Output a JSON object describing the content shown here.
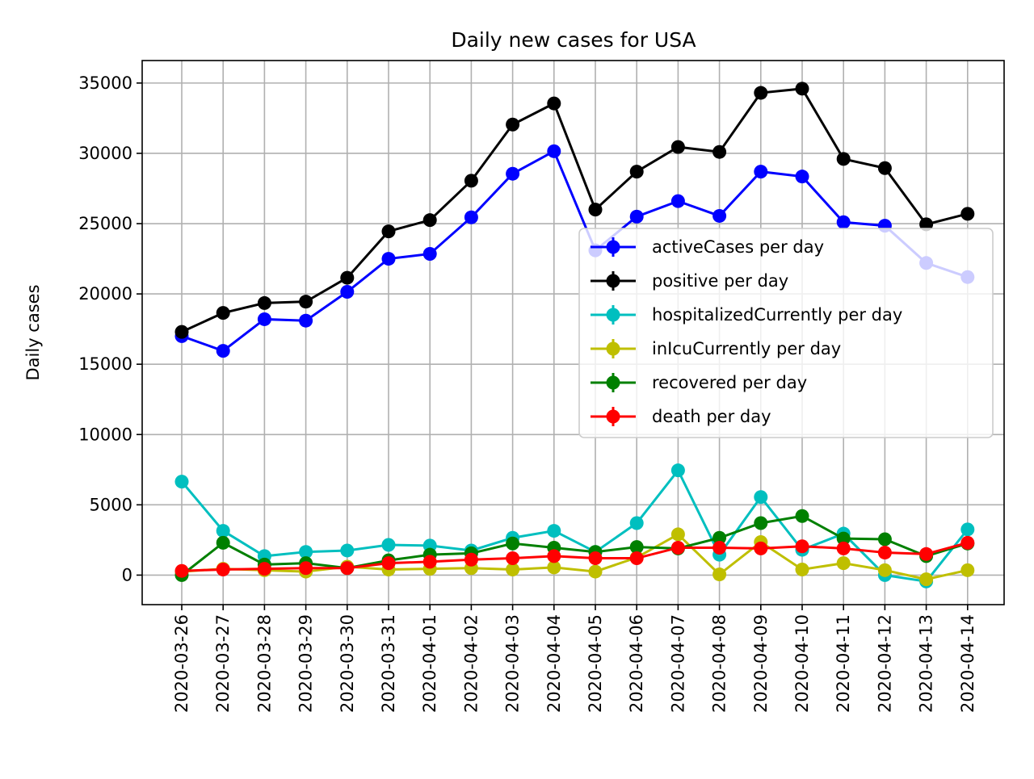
{
  "chart_data": {
    "type": "line",
    "title": "Daily new cases for USA",
    "xlabel": "",
    "ylabel": "Daily cases",
    "x": [
      "2020-03-26",
      "2020-03-27",
      "2020-03-28",
      "2020-03-29",
      "2020-03-30",
      "2020-03-31",
      "2020-04-01",
      "2020-04-02",
      "2020-04-03",
      "2020-04-04",
      "2020-04-05",
      "2020-04-06",
      "2020-04-07",
      "2020-04-08",
      "2020-04-09",
      "2020-04-10",
      "2020-04-11",
      "2020-04-12",
      "2020-04-13",
      "2020-04-14"
    ],
    "ylim": [
      -2100,
      36600
    ],
    "yticks": [
      0,
      5000,
      10000,
      15000,
      20000,
      25000,
      30000,
      35000
    ],
    "grid": true,
    "legend_position": "right",
    "series": [
      {
        "name": "activeCases per day",
        "color": "#0000ff",
        "values": [
          17000,
          15950,
          18200,
          18100,
          20150,
          22500,
          22850,
          25450,
          28550,
          30150,
          23100,
          25500,
          26600,
          25550,
          28700,
          28350,
          25100,
          24850,
          22200,
          21200
        ]
      },
      {
        "name": "positive per day",
        "color": "#000000",
        "values": [
          17300,
          18650,
          19350,
          19450,
          21150,
          24450,
          25250,
          28050,
          32050,
          33550,
          26000,
          28700,
          30450,
          30100,
          34300,
          34600,
          29600,
          28950,
          24950,
          25700
        ]
      },
      {
        "name": "hospitalizedCurrently per day",
        "color": "#00bfbf",
        "values": [
          6650,
          3150,
          1350,
          1650,
          1750,
          2150,
          2100,
          1750,
          2650,
          3150,
          1650,
          3700,
          7450,
          1450,
          5550,
          1800,
          2950,
          0,
          -450,
          3250
        ]
      },
      {
        "name": "inIcuCurrently per day",
        "color": "#bfbf00",
        "values": [
          250,
          450,
          350,
          250,
          600,
          400,
          450,
          500,
          400,
          550,
          250,
          1250,
          2900,
          50,
          2350,
          400,
          850,
          350,
          -300,
          350
        ]
      },
      {
        "name": "recovered per day",
        "color": "#008000",
        "values": [
          0,
          2300,
          750,
          850,
          500,
          1050,
          1450,
          1550,
          2250,
          1950,
          1650,
          2000,
          1900,
          2650,
          3700,
          4200,
          2600,
          2550,
          1350,
          2250
        ]
      },
      {
        "name": "death per day",
        "color": "#ff0000",
        "values": [
          300,
          400,
          450,
          500,
          500,
          850,
          950,
          1100,
          1200,
          1350,
          1200,
          1200,
          1950,
          1950,
          1900,
          2050,
          1900,
          1600,
          1500,
          2300
        ]
      }
    ]
  }
}
